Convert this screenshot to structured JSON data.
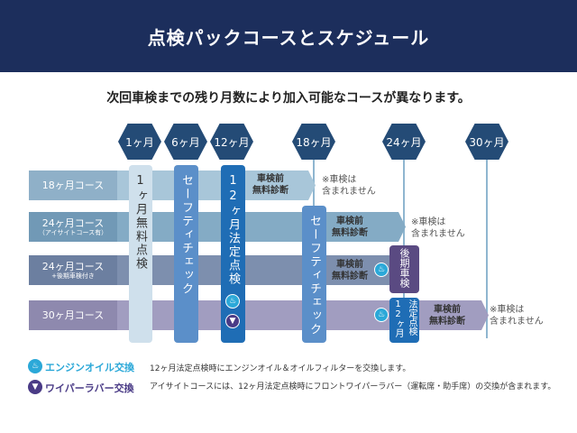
{
  "header": {
    "title": "点検パックコースとスケジュール"
  },
  "subtitle": "次回車検までの残り月数により加入可能なコースが異なります。",
  "milestones": [
    "1ヶ月",
    "6ヶ月",
    "12ヶ月",
    "18ヶ月",
    "24ヶ月",
    "30ヶ月"
  ],
  "courses": [
    {
      "label": "18ヶ月コース",
      "sub": "",
      "color": "#9dbdd2"
    },
    {
      "label": "24ヶ月コース",
      "sub": "（アイサイトコース有）",
      "color": "#7fa8c2"
    },
    {
      "label": "24ヶ月コース",
      "sub": "+後期車検付き",
      "color": "#7a8cab"
    },
    {
      "label": "30ヶ月コース",
      "sub": "",
      "color": "#9d99bb"
    }
  ],
  "pills": {
    "m1": "1ヶ月無料点検",
    "m6": "セーフティチェック",
    "m12": "12ヶ月法定点検",
    "m18": "セーフティチェック"
  },
  "boxes": {
    "late_inspection": "後期車検",
    "legal12": "法定点検",
    "legal12_num": "12ヶ月"
  },
  "diag": "車検前\n無料診断",
  "note": "※車検は\n含まれません",
  "legend": [
    {
      "icon": "oil-can-icon",
      "label": "エンジンオイル交換",
      "text": "12ヶ月法定点検時にエンジンオイル＆オイルフィルターを交換します。",
      "color": "#2ba8d8"
    },
    {
      "icon": "wiper-icon",
      "label": "ワイパーラバー交換",
      "text": "アイサイトコースには、12ヶ月法定点検時にフロントワイパーラバー（運転席・助手席）の交換が含まれます。",
      "color": "#4a3b86"
    }
  ]
}
